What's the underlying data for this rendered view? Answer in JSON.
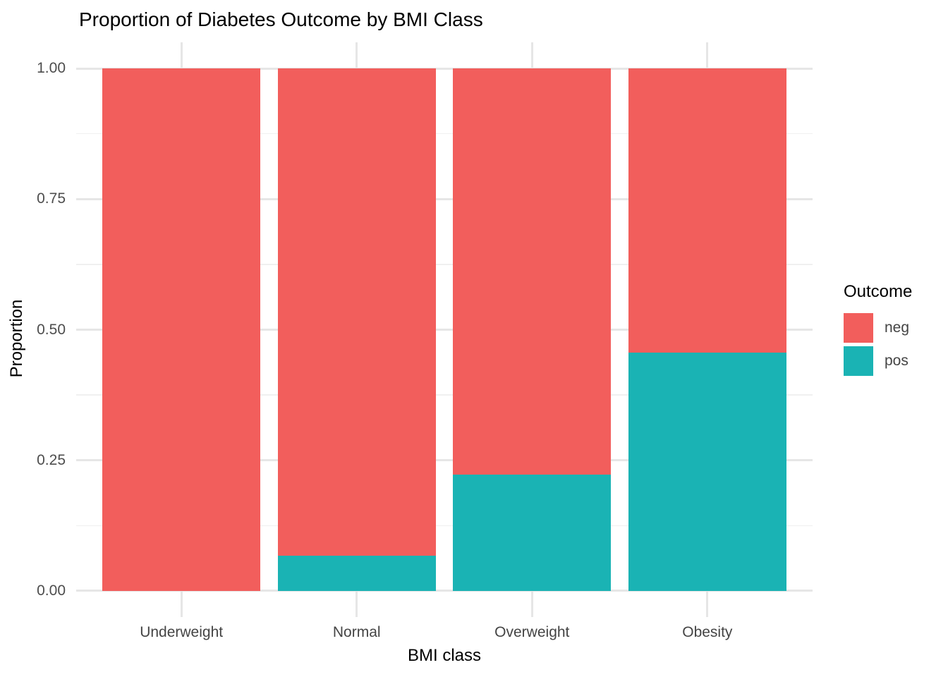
{
  "title": "Proportion of Diabetes Outcome by BMI Class",
  "chart_data": {
    "type": "bar",
    "stacked": true,
    "stack_note": "proportion fill; first series drawn on top, last series at bottom",
    "title": "Proportion of Diabetes Outcome by BMI Class",
    "xlabel": "BMI class",
    "ylabel": "Proportion",
    "categories": [
      "Underweight",
      "Normal",
      "Overweight",
      "Obesity"
    ],
    "series": [
      {
        "name": "neg",
        "color": "#F25E5C",
        "values": [
          1.0,
          0.932,
          0.778,
          0.544
        ]
      },
      {
        "name": "pos",
        "color": "#1AB3B4",
        "values": [
          0.0,
          0.068,
          0.222,
          0.456
        ]
      }
    ],
    "ylim": [
      0,
      1
    ],
    "y_expansion": 0.05,
    "yticks": [
      0,
      0.25,
      0.5,
      0.75,
      1.0
    ],
    "ytick_labels": [
      "0.00",
      "0.25",
      "0.50",
      "0.75",
      "1.00"
    ],
    "grid": true,
    "minor_grid": true,
    "legend": {
      "title": "Outcome",
      "position": "right",
      "entries": [
        {
          "label": "neg",
          "color": "#F25E5C"
        },
        {
          "label": "pos",
          "color": "#1AB3B4"
        }
      ]
    }
  }
}
